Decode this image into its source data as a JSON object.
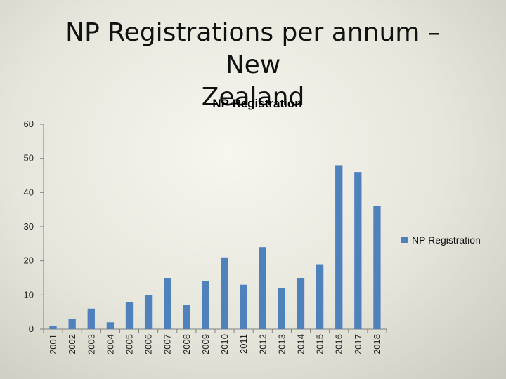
{
  "slide": {
    "title_line1": "NP Registrations per annum – New",
    "title_line2": "Zealand"
  },
  "chart_data": {
    "type": "bar",
    "title": "NP Registration",
    "xlabel": "",
    "ylabel": "",
    "categories": [
      "2001",
      "2002",
      "2003",
      "2004",
      "2005",
      "2006",
      "2007",
      "2008",
      "2009",
      "2010",
      "2011",
      "2012",
      "2013",
      "2014",
      "2015",
      "2016",
      "2017",
      "2018"
    ],
    "series": [
      {
        "name": "NP Registration",
        "values": [
          1,
          3,
          6,
          2,
          8,
          10,
          15,
          7,
          14,
          21,
          13,
          24,
          12,
          15,
          19,
          48,
          46,
          36
        ],
        "color": "#4f81bd"
      }
    ],
    "ylim": [
      0,
      60
    ],
    "yticks": [
      0,
      10,
      20,
      30,
      40,
      50,
      60
    ],
    "grid": false,
    "legend_position": "right",
    "axis_color": "#808080"
  }
}
